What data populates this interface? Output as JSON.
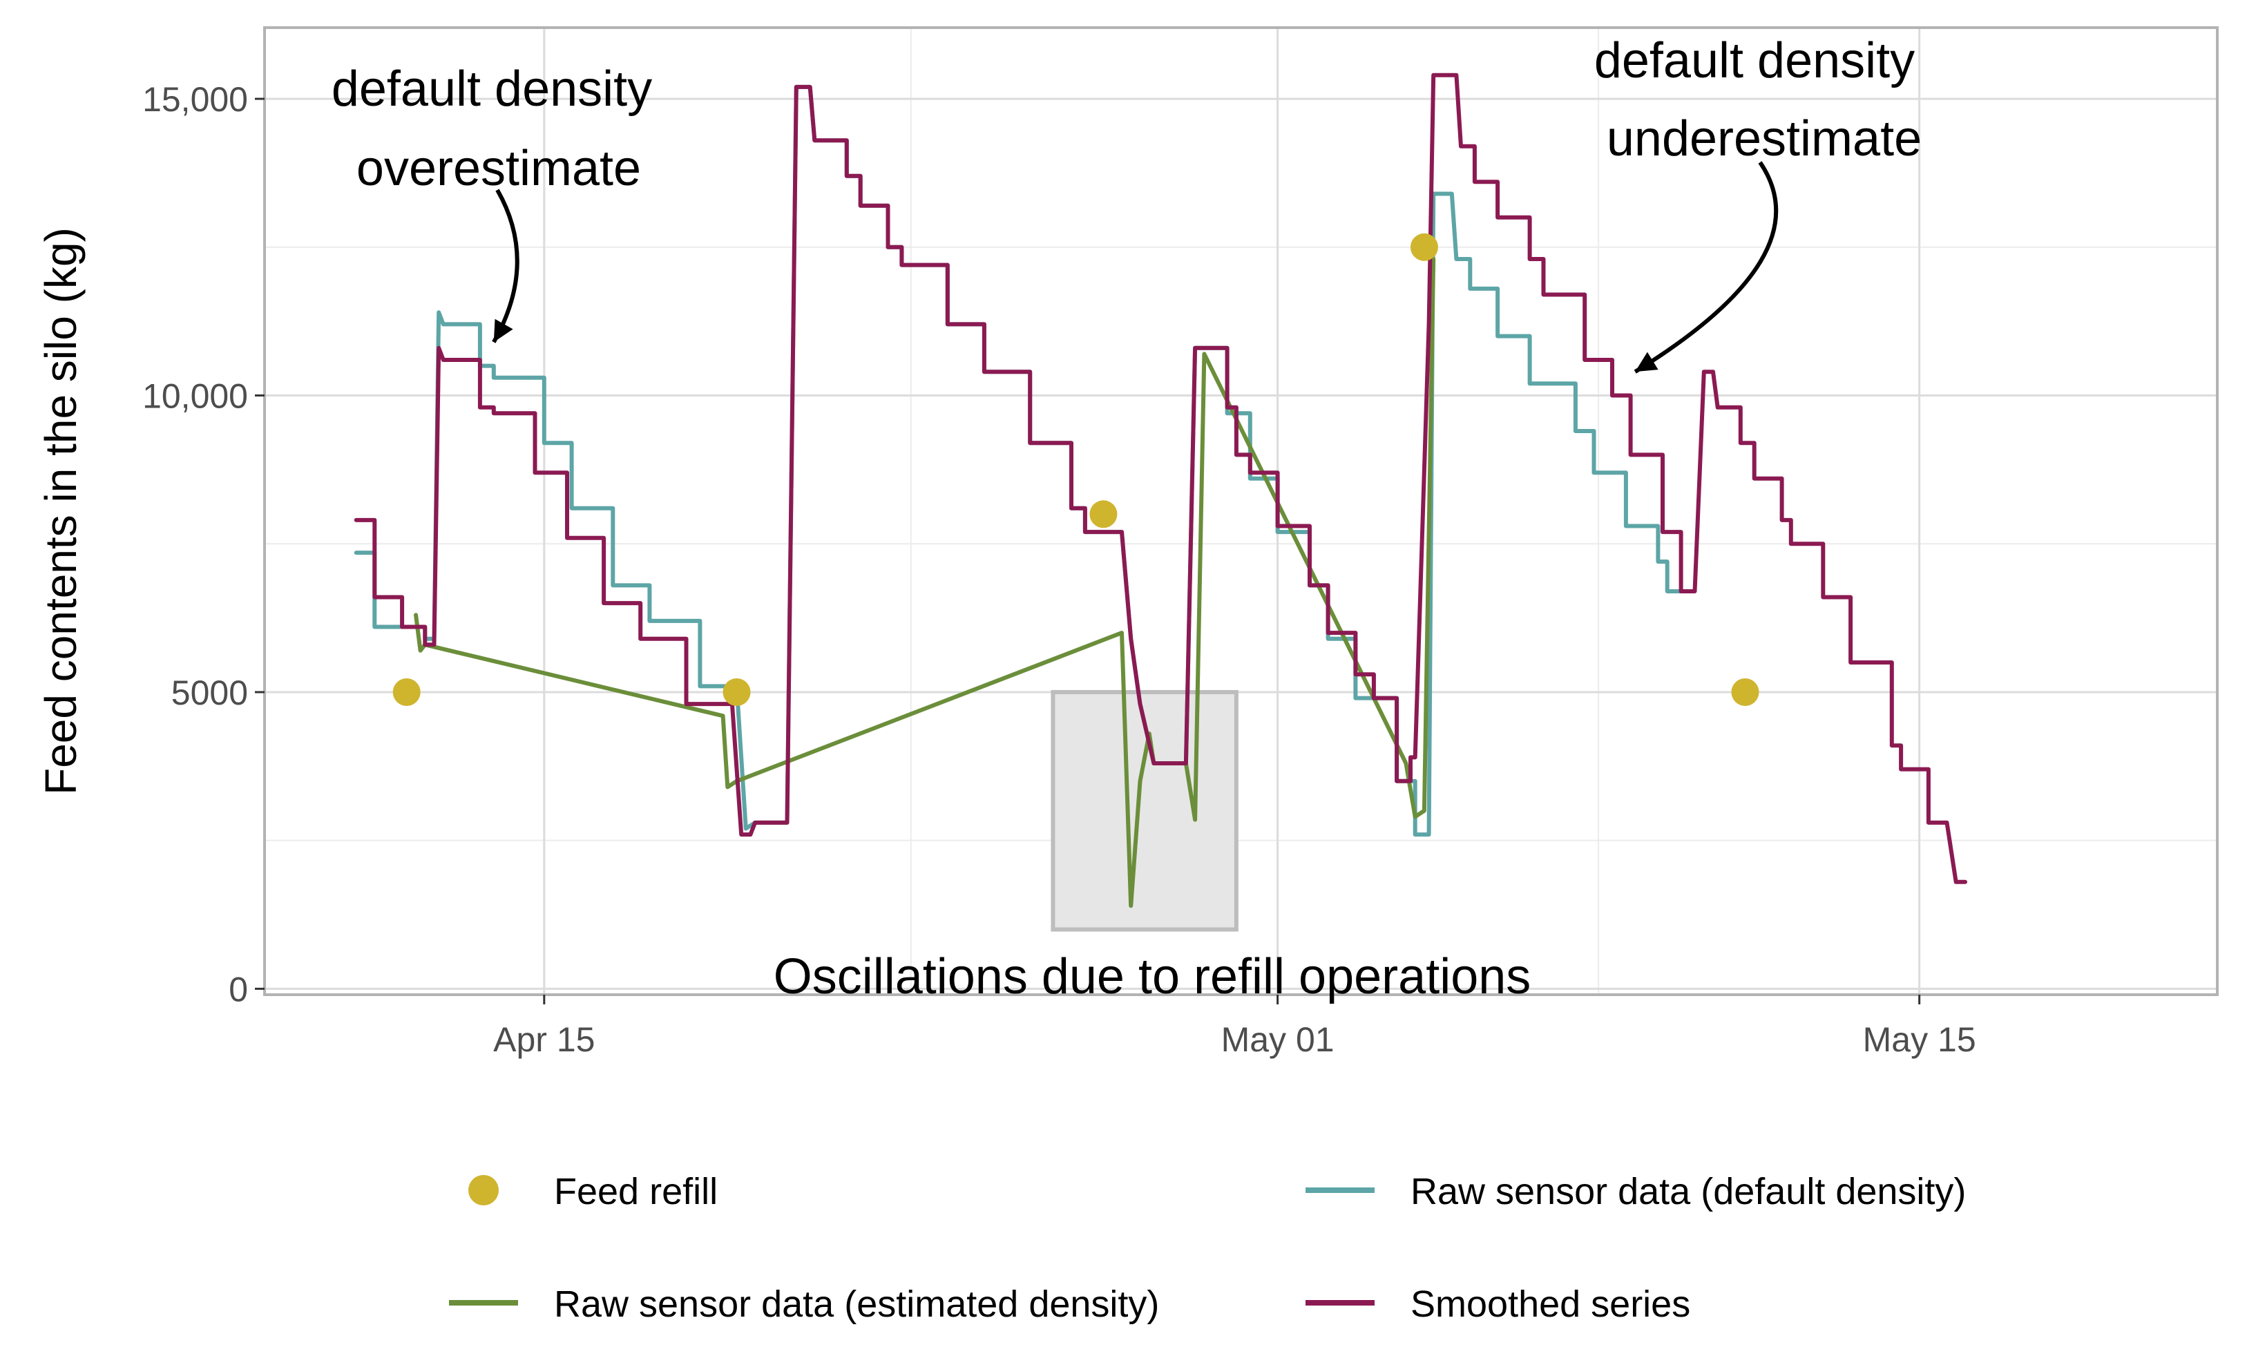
{
  "chart_data": {
    "type": "line",
    "title": "",
    "xlabel": "",
    "ylabel": "Feed contents in the silo (kg)",
    "x_unit": "day (0 = Apr 01)",
    "xlim": [
      7.9,
      50.5
    ],
    "ylim": [
      -100,
      16200
    ],
    "grid": true,
    "x_ticks": [
      {
        "value": 14,
        "label": "Apr 15"
      },
      {
        "value": 30,
        "label": "May 01"
      },
      {
        "value": 44,
        "label": "May 15"
      }
    ],
    "y_ticks": [
      {
        "value": 0,
        "label": "0"
      },
      {
        "value": 5000,
        "label": "5000"
      },
      {
        "value": 10000,
        "label": "10,000"
      },
      {
        "value": 15000,
        "label": "15,000"
      }
    ],
    "series": [
      {
        "name": "Smoothed series",
        "color": "#8b1a52",
        "points": [
          [
            9.9,
            7900
          ],
          [
            10.3,
            7900
          ],
          [
            10.3,
            6600
          ],
          [
            10.9,
            6600
          ],
          [
            10.9,
            6100
          ],
          [
            11.4,
            6100
          ],
          [
            11.4,
            5800
          ],
          [
            11.6,
            5800
          ],
          [
            11.7,
            10800
          ],
          [
            11.8,
            10600
          ],
          [
            12.6,
            10600
          ],
          [
            12.6,
            9800
          ],
          [
            12.9,
            9800
          ],
          [
            12.9,
            9700
          ],
          [
            13.8,
            9700
          ],
          [
            13.8,
            8700
          ],
          [
            14.5,
            8700
          ],
          [
            14.5,
            7600
          ],
          [
            15.3,
            7600
          ],
          [
            15.3,
            6500
          ],
          [
            16.1,
            6500
          ],
          [
            16.1,
            5900
          ],
          [
            17.1,
            5900
          ],
          [
            17.1,
            4800
          ],
          [
            18.1,
            4800
          ],
          [
            18.3,
            2600
          ],
          [
            18.5,
            2600
          ],
          [
            18.6,
            2800
          ],
          [
            19.3,
            2800
          ],
          [
            19.5,
            15200
          ],
          [
            19.8,
            15200
          ],
          [
            19.9,
            14300
          ],
          [
            20.6,
            14300
          ],
          [
            20.6,
            13700
          ],
          [
            20.9,
            13700
          ],
          [
            20.9,
            13200
          ],
          [
            21.5,
            13200
          ],
          [
            21.5,
            12500
          ],
          [
            21.8,
            12500
          ],
          [
            21.8,
            12200
          ],
          [
            22.8,
            12200
          ],
          [
            22.8,
            11200
          ],
          [
            23.6,
            11200
          ],
          [
            23.6,
            10400
          ],
          [
            24.6,
            10400
          ],
          [
            24.6,
            9200
          ],
          [
            25.5,
            9200
          ],
          [
            25.5,
            8100
          ],
          [
            25.8,
            8100
          ],
          [
            25.8,
            7700
          ],
          [
            26.6,
            7700
          ],
          [
            26.8,
            5900
          ],
          [
            27.0,
            4800
          ],
          [
            27.3,
            3800
          ],
          [
            28.0,
            3800
          ],
          [
            28.2,
            10800
          ],
          [
            28.9,
            10800
          ],
          [
            28.9,
            9800
          ],
          [
            29.1,
            9800
          ],
          [
            29.1,
            9000
          ],
          [
            29.4,
            9000
          ],
          [
            29.4,
            8700
          ],
          [
            30.0,
            8700
          ],
          [
            30.0,
            7800
          ],
          [
            30.7,
            7800
          ],
          [
            30.7,
            6800
          ],
          [
            31.1,
            6800
          ],
          [
            31.1,
            6000
          ],
          [
            31.7,
            6000
          ],
          [
            31.7,
            5300
          ],
          [
            32.1,
            5300
          ],
          [
            32.1,
            4900
          ],
          [
            32.6,
            4900
          ],
          [
            32.6,
            3500
          ],
          [
            32.9,
            3500
          ],
          [
            32.9,
            3900
          ],
          [
            33.0,
            3900
          ],
          [
            33.3,
            11200
          ],
          [
            33.4,
            15400
          ],
          [
            33.9,
            15400
          ],
          [
            34.0,
            14200
          ],
          [
            34.3,
            14200
          ],
          [
            34.3,
            13600
          ],
          [
            34.8,
            13600
          ],
          [
            34.8,
            13000
          ],
          [
            35.5,
            13000
          ],
          [
            35.5,
            12300
          ],
          [
            35.8,
            12300
          ],
          [
            35.8,
            11700
          ],
          [
            36.7,
            11700
          ],
          [
            36.7,
            10600
          ],
          [
            37.3,
            10600
          ],
          [
            37.3,
            10000
          ],
          [
            37.7,
            10000
          ],
          [
            37.7,
            9000
          ],
          [
            38.4,
            9000
          ],
          [
            38.4,
            7700
          ],
          [
            38.8,
            7700
          ],
          [
            38.8,
            6700
          ],
          [
            39.1,
            6700
          ],
          [
            39.3,
            10400
          ],
          [
            39.5,
            10400
          ],
          [
            39.6,
            9800
          ],
          [
            40.1,
            9800
          ],
          [
            40.1,
            9200
          ],
          [
            40.4,
            9200
          ],
          [
            40.4,
            8600
          ],
          [
            41.0,
            8600
          ],
          [
            41.0,
            7900
          ],
          [
            41.2,
            7900
          ],
          [
            41.2,
            7500
          ],
          [
            41.9,
            7500
          ],
          [
            41.9,
            6600
          ],
          [
            42.5,
            6600
          ],
          [
            42.5,
            5500
          ],
          [
            43.4,
            5500
          ],
          [
            43.4,
            4100
          ],
          [
            43.6,
            4100
          ],
          [
            43.6,
            3700
          ],
          [
            44.2,
            3700
          ],
          [
            44.2,
            2800
          ],
          [
            44.6,
            2800
          ],
          [
            44.8,
            1800
          ],
          [
            45.0,
            1800
          ]
        ]
      },
      {
        "name": "Raw sensor data (default density)",
        "color": "#5da5a6",
        "points": [
          [
            9.9,
            7350
          ],
          [
            10.3,
            7350
          ],
          [
            10.3,
            6100
          ],
          [
            11.4,
            6100
          ],
          [
            11.4,
            5900
          ],
          [
            11.6,
            5900
          ],
          [
            11.7,
            11400
          ],
          [
            11.8,
            11200
          ],
          [
            12.6,
            11200
          ],
          [
            12.6,
            10500
          ],
          [
            12.9,
            10500
          ],
          [
            12.9,
            10300
          ],
          [
            14.0,
            10300
          ],
          [
            14.0,
            9200
          ],
          [
            14.6,
            9200
          ],
          [
            14.6,
            8100
          ],
          [
            15.5,
            8100
          ],
          [
            15.5,
            6800
          ],
          [
            16.3,
            6800
          ],
          [
            16.3,
            6200
          ],
          [
            17.4,
            6200
          ],
          [
            17.4,
            5100
          ],
          [
            18.2,
            5100
          ],
          [
            18.4,
            2700
          ],
          [
            18.6,
            2800
          ],
          [
            19.3,
            2800
          ],
          [
            19.5,
            15200
          ],
          [
            19.8,
            15200
          ],
          [
            19.9,
            14300
          ],
          [
            20.6,
            14300
          ],
          [
            20.6,
            13700
          ],
          [
            20.9,
            13700
          ],
          [
            20.9,
            13200
          ],
          [
            21.5,
            13200
          ],
          [
            21.5,
            12500
          ],
          [
            21.8,
            12500
          ],
          [
            21.8,
            12200
          ],
          [
            22.8,
            12200
          ],
          [
            22.8,
            11200
          ],
          [
            23.6,
            11200
          ],
          [
            23.6,
            10400
          ],
          [
            24.6,
            10400
          ],
          [
            24.6,
            9200
          ],
          [
            25.5,
            9200
          ],
          [
            25.5,
            8100
          ],
          [
            25.8,
            8100
          ],
          [
            25.8,
            7700
          ],
          [
            26.6,
            7700
          ],
          [
            26.8,
            5900
          ],
          [
            27.0,
            4800
          ],
          [
            27.3,
            3800
          ],
          [
            28.0,
            3800
          ],
          [
            28.2,
            10800
          ],
          [
            28.9,
            10800
          ],
          [
            28.9,
            9700
          ],
          [
            29.4,
            9700
          ],
          [
            29.4,
            8600
          ],
          [
            30.0,
            8600
          ],
          [
            30.0,
            7700
          ],
          [
            30.7,
            7700
          ],
          [
            30.7,
            6800
          ],
          [
            31.1,
            6800
          ],
          [
            31.1,
            5900
          ],
          [
            31.7,
            5900
          ],
          [
            31.7,
            4900
          ],
          [
            32.6,
            4900
          ],
          [
            32.6,
            3500
          ],
          [
            33.0,
            3500
          ],
          [
            33.0,
            2600
          ],
          [
            33.3,
            2600
          ],
          [
            33.4,
            13400
          ],
          [
            33.8,
            13400
          ],
          [
            33.9,
            12300
          ],
          [
            34.2,
            12300
          ],
          [
            34.2,
            11800
          ],
          [
            34.8,
            11800
          ],
          [
            34.8,
            11000
          ],
          [
            35.5,
            11000
          ],
          [
            35.5,
            10200
          ],
          [
            36.5,
            10200
          ],
          [
            36.5,
            9400
          ],
          [
            36.9,
            9400
          ],
          [
            36.9,
            8700
          ],
          [
            37.6,
            8700
          ],
          [
            37.6,
            7800
          ],
          [
            38.3,
            7800
          ],
          [
            38.3,
            7200
          ],
          [
            38.5,
            7200
          ],
          [
            38.5,
            6700
          ],
          [
            38.9,
            6700
          ]
        ]
      },
      {
        "name": "Raw sensor data (estimated density)",
        "color": "#6b8e3a",
        "points": [
          [
            11.2,
            6300
          ],
          [
            11.3,
            5700
          ],
          [
            11.4,
            5800
          ],
          [
            17.9,
            4600
          ],
          [
            18.0,
            3400
          ],
          [
            18.2,
            3500
          ],
          [
            26.6,
            6000
          ],
          [
            26.8,
            1400
          ],
          [
            27.0,
            3500
          ],
          [
            27.2,
            4300
          ],
          [
            27.3,
            3800
          ],
          [
            28.0,
            3800
          ],
          [
            28.2,
            2850
          ],
          [
            28.4,
            10700
          ],
          [
            32.8,
            3800
          ],
          [
            33.0,
            2900
          ],
          [
            33.2,
            3000
          ],
          [
            33.4,
            12300
          ]
        ]
      }
    ],
    "markers": {
      "name": "Feed refill",
      "color": "#cfb42e",
      "points": [
        [
          11.0,
          5000
        ],
        [
          18.2,
          5000
        ],
        [
          26.2,
          8000
        ],
        [
          33.2,
          12500
        ],
        [
          40.2,
          5000
        ]
      ]
    },
    "highlight_box": {
      "x": [
        25.1,
        29.1
      ],
      "y": [
        1000,
        5000
      ]
    },
    "legend": {
      "position": "bottom",
      "entries": [
        {
          "label": "Feed refill",
          "kind": "point",
          "color": "#cfb42e"
        },
        {
          "label": "Raw sensor data (default density)",
          "kind": "line",
          "color": "#5da5a6"
        },
        {
          "label": "Raw sensor data (estimated density)",
          "kind": "line",
          "color": "#6b8e3a"
        },
        {
          "label": "Smoothed series",
          "kind": "line",
          "color": "#8b1a52"
        }
      ]
    },
    "annotations": [
      {
        "lines": [
          "default density",
          "overestimate"
        ],
        "target": [
          12.9,
          10900
        ]
      },
      {
        "lines": [
          "default density",
          "underestimate"
        ],
        "target": [
          37.8,
          10400
        ]
      },
      {
        "lines": [
          "Oscillations due to refill operations"
        ]
      }
    ]
  }
}
